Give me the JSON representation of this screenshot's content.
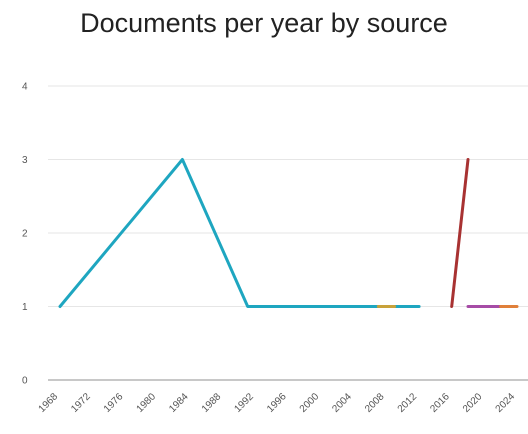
{
  "chart_data": {
    "type": "line",
    "title": "Documents per year by source",
    "xlabel": "",
    "ylabel": "",
    "xlim": [
      1968,
      2024
    ],
    "ylim": [
      0,
      4
    ],
    "x_ticks": [
      "1968",
      "1972",
      "1976",
      "1980",
      "1984",
      "1988",
      "1992",
      "1996",
      "2000",
      "2004",
      "2008",
      "2012",
      "2016",
      "2020",
      "2024"
    ],
    "y_ticks": [
      "0",
      "1",
      "2",
      "3",
      "4"
    ],
    "grid": true,
    "legend": "none",
    "series": [
      {
        "color": "#1ea6c0",
        "x": [
          1968,
          1983,
          1991,
          2012
        ],
        "y": [
          1,
          3,
          1,
          1
        ]
      },
      {
        "color": "#a83232",
        "x": [
          2016,
          2018
        ],
        "y": [
          1,
          3
        ]
      },
      {
        "color": "#a64ca6",
        "x": [
          2018,
          2023
        ],
        "y": [
          1,
          1
        ]
      },
      {
        "color": "#c8a23a",
        "x": [
          2007,
          2009
        ],
        "y": [
          1,
          1
        ]
      },
      {
        "color": "#e0803a",
        "x": [
          2022,
          2024
        ],
        "y": [
          1,
          1
        ]
      }
    ]
  }
}
